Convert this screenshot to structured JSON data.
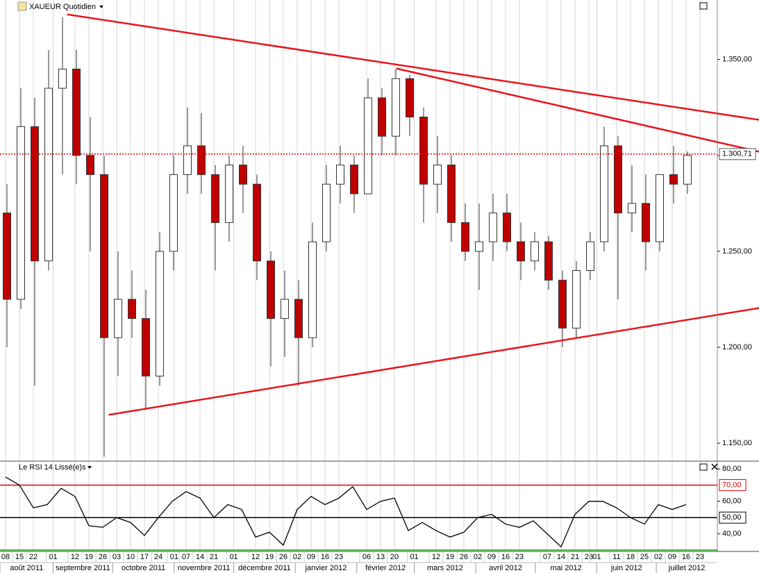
{
  "chart_data": [
    {
      "type": "candlestick",
      "title": "XAUEUR Quotidien",
      "x": [
        "2011-08-08",
        "2011-08-15",
        "2011-08-22",
        "2011-08-29",
        "2011-09-05",
        "2011-09-12",
        "2011-09-19",
        "2011-09-26",
        "2011-10-03",
        "2011-10-10",
        "2011-10-17",
        "2011-10-24",
        "2011-10-31",
        "2011-11-07",
        "2011-11-14",
        "2011-11-21",
        "2011-11-28",
        "2011-12-05",
        "2011-12-12",
        "2011-12-19",
        "2011-12-26",
        "2012-01-02",
        "2012-01-09",
        "2012-01-16",
        "2012-01-23",
        "2012-01-30",
        "2012-02-06",
        "2012-02-13",
        "2012-02-20",
        "2012-02-27",
        "2012-03-05",
        "2012-03-12",
        "2012-03-19",
        "2012-03-26",
        "2012-04-02",
        "2012-04-09",
        "2012-04-16",
        "2012-04-23",
        "2012-04-30",
        "2012-05-07",
        "2012-05-14",
        "2012-05-21",
        "2012-05-28",
        "2012-06-04",
        "2012-06-11",
        "2012-06-18",
        "2012-06-25",
        "2012-07-02",
        "2012-07-09",
        "2012-07-16"
      ],
      "open": [
        1.27,
        1.225,
        1.315,
        1.245,
        1.335,
        1.345,
        1.3,
        1.29,
        1.205,
        1.225,
        1.215,
        1.185,
        1.25,
        1.29,
        1.305,
        1.29,
        1.265,
        1.295,
        1.285,
        1.245,
        1.215,
        1.225,
        1.205,
        1.255,
        1.285,
        1.295,
        1.28,
        1.33,
        1.31,
        1.34,
        1.32,
        1.285,
        1.295,
        1.265,
        1.25,
        1.255,
        1.27,
        1.255,
        1.245,
        1.255,
        1.235,
        1.21,
        1.24,
        1.255,
        1.305,
        1.27,
        1.275,
        1.255,
        1.29,
        1.285
      ],
      "high": [
        1.285,
        1.335,
        1.33,
        1.355,
        1.372,
        1.355,
        1.32,
        1.3,
        1.25,
        1.24,
        1.23,
        1.26,
        1.3,
        1.325,
        1.322,
        1.295,
        1.3,
        1.305,
        1.29,
        1.25,
        1.24,
        1.235,
        1.265,
        1.295,
        1.305,
        1.3,
        1.34,
        1.335,
        1.345,
        1.342,
        1.325,
        1.31,
        1.3,
        1.275,
        1.275,
        1.28,
        1.28,
        1.265,
        1.26,
        1.258,
        1.24,
        1.245,
        1.26,
        1.315,
        1.31,
        1.295,
        1.29,
        1.29,
        1.305,
        1.302
      ],
      "low": [
        1.2,
        1.22,
        1.18,
        1.24,
        1.29,
        1.285,
        1.25,
        1.143,
        1.185,
        1.205,
        1.168,
        1.18,
        1.24,
        1.28,
        1.28,
        1.24,
        1.255,
        1.27,
        1.235,
        1.19,
        1.195,
        1.18,
        1.2,
        1.25,
        1.275,
        1.27,
        1.28,
        1.3,
        1.3,
        1.31,
        1.265,
        1.27,
        1.255,
        1.245,
        1.23,
        1.245,
        1.25,
        1.235,
        1.24,
        1.23,
        1.2,
        1.205,
        1.235,
        1.25,
        1.225,
        1.26,
        1.24,
        1.25,
        1.275,
        1.28
      ],
      "close": [
        1.225,
        1.315,
        1.245,
        1.335,
        1.345,
        1.3,
        1.29,
        1.205,
        1.225,
        1.215,
        1.185,
        1.25,
        1.29,
        1.305,
        1.29,
        1.265,
        1.295,
        1.285,
        1.245,
        1.215,
        1.225,
        1.205,
        1.255,
        1.285,
        1.295,
        1.28,
        1.33,
        1.31,
        1.34,
        1.32,
        1.285,
        1.295,
        1.265,
        1.25,
        1.255,
        1.27,
        1.255,
        1.245,
        1.255,
        1.235,
        1.21,
        1.24,
        1.255,
        1.305,
        1.27,
        1.275,
        1.255,
        1.29,
        1.285,
        1.3
      ],
      "up_color": "#ffffff",
      "down_color": "#c00000",
      "outline_color": "#333333",
      "ylim": [
        1.141,
        1.381
      ],
      "yticks": [
        {
          "value": 1.15,
          "label": "1.150,00"
        },
        {
          "value": 1.2,
          "label": "1.200,00"
        },
        {
          "value": 1.25,
          "label": "1.250,00"
        },
        {
          "value": 1.3,
          "label": "1.300,00"
        },
        {
          "value": 1.35,
          "label": "1.350,00"
        }
      ],
      "last_price": {
        "value": 1.30071,
        "label": "1.300,71",
        "color": "#e00000"
      },
      "trendlines": [
        {
          "x": [
            "2011-09-08",
            "2012-08-22"
          ],
          "y": [
            1.3735,
            1.3185
          ],
          "color": "#e8141b"
        },
        {
          "x": [
            "2012-02-21",
            "2012-08-22"
          ],
          "y": [
            1.3453,
            1.3019
          ],
          "color": "#e8141b"
        },
        {
          "x": [
            "2011-09-29",
            "2012-08-22"
          ],
          "y": [
            1.1648,
            1.2205
          ],
          "color": "#e8141b"
        }
      ],
      "xticks": [
        {
          "value": "2011-08-08",
          "label": "08"
        },
        {
          "value": "2011-08-15",
          "label": "15"
        },
        {
          "value": "2011-08-22",
          "label": "22"
        },
        {
          "value": "2011-09-01",
          "label": "01"
        },
        {
          "value": "2011-09-12",
          "label": "12"
        },
        {
          "value": "2011-09-19",
          "label": "19"
        },
        {
          "value": "2011-09-26",
          "label": "26"
        },
        {
          "value": "2011-10-03",
          "label": "03"
        },
        {
          "value": "2011-10-10",
          "label": "10"
        },
        {
          "value": "2011-10-17",
          "label": "17"
        },
        {
          "value": "2011-10-24",
          "label": "24"
        },
        {
          "value": "2011-11-01",
          "label": "01"
        },
        {
          "value": "2011-11-07",
          "label": "07"
        },
        {
          "value": "2011-11-14",
          "label": "14"
        },
        {
          "value": "2011-11-21",
          "label": "21"
        },
        {
          "value": "2011-12-01",
          "label": "01"
        },
        {
          "value": "2011-12-12",
          "label": "12"
        },
        {
          "value": "2011-12-19",
          "label": "19"
        },
        {
          "value": "2011-12-26",
          "label": "26"
        },
        {
          "value": "2012-01-02",
          "label": "02"
        },
        {
          "value": "2012-01-09",
          "label": "09"
        },
        {
          "value": "2012-01-16",
          "label": "16"
        },
        {
          "value": "2012-01-23",
          "label": "23"
        },
        {
          "value": "2012-02-06",
          "label": "06"
        },
        {
          "value": "2012-02-13",
          "label": "13"
        },
        {
          "value": "2012-02-20",
          "label": "20"
        },
        {
          "value": "2012-03-01",
          "label": "01"
        },
        {
          "value": "2012-03-12",
          "label": "12"
        },
        {
          "value": "2012-03-19",
          "label": "19"
        },
        {
          "value": "2012-03-26",
          "label": "26"
        },
        {
          "value": "2012-04-02",
          "label": "02"
        },
        {
          "value": "2012-04-09",
          "label": "09"
        },
        {
          "value": "2012-04-16",
          "label": "16"
        },
        {
          "value": "2012-04-23",
          "label": "23"
        },
        {
          "value": "2012-05-07",
          "label": "07"
        },
        {
          "value": "2012-05-14",
          "label": "14"
        },
        {
          "value": "2012-05-21",
          "label": "21"
        },
        {
          "value": "2012-05-28",
          "label": "28"
        },
        {
          "value": "2012-06-01",
          "label": "01"
        },
        {
          "value": "2012-06-11",
          "label": "11"
        },
        {
          "value": "2012-06-18",
          "label": "18"
        },
        {
          "value": "2012-06-25",
          "label": "25"
        },
        {
          "value": "2012-07-02",
          "label": "02"
        },
        {
          "value": "2012-07-09",
          "label": "09"
        },
        {
          "value": "2012-07-16",
          "label": "16"
        },
        {
          "value": "2012-07-23",
          "label": "23"
        }
      ],
      "month_ticks": [
        {
          "value": "2011-08-01",
          "label": "août 2011"
        },
        {
          "value": "2011-09-01",
          "label": "septembre 2011"
        },
        {
          "value": "2011-10-01",
          "label": "octobre 2011"
        },
        {
          "value": "2011-11-01",
          "label": "novembre 2011"
        },
        {
          "value": "2011-12-01",
          "label": "décembre 2011"
        },
        {
          "value": "2012-01-01",
          "label": "janvier 2012"
        },
        {
          "value": "2012-02-01",
          "label": "février 2012"
        },
        {
          "value": "2012-03-01",
          "label": "mars 2012"
        },
        {
          "value": "2012-04-01",
          "label": "avril 2012"
        },
        {
          "value": "2012-05-01",
          "label": "mai 2012"
        },
        {
          "value": "2012-06-01",
          "label": "juin 2012"
        },
        {
          "value": "2012-07-01",
          "label": "juillet 2012"
        }
      ],
      "grid": true
    },
    {
      "type": "line",
      "title": "Le RSI 14 Lissé(e)s",
      "x": [
        "2011-08-08",
        "2011-08-15",
        "2011-08-22",
        "2011-08-29",
        "2011-09-05",
        "2011-09-12",
        "2011-09-19",
        "2011-09-26",
        "2011-10-03",
        "2011-10-10",
        "2011-10-17",
        "2011-10-24",
        "2011-10-31",
        "2011-11-07",
        "2011-11-14",
        "2011-11-21",
        "2011-11-28",
        "2011-12-05",
        "2011-12-12",
        "2011-12-19",
        "2011-12-26",
        "2012-01-02",
        "2012-01-09",
        "2012-01-16",
        "2012-01-23",
        "2012-01-30",
        "2012-02-06",
        "2012-02-13",
        "2012-02-20",
        "2012-02-27",
        "2012-03-05",
        "2012-03-12",
        "2012-03-19",
        "2012-03-26",
        "2012-04-02",
        "2012-04-09",
        "2012-04-16",
        "2012-04-23",
        "2012-04-30",
        "2012-05-07",
        "2012-05-14",
        "2012-05-21",
        "2012-05-28",
        "2012-06-04",
        "2012-06-11",
        "2012-06-18",
        "2012-06-25",
        "2012-07-02",
        "2012-07-09",
        "2012-07-16"
      ],
      "values": [
        75,
        70,
        56,
        58,
        68,
        63,
        45,
        44,
        50,
        47,
        39,
        50,
        60,
        66,
        62,
        50,
        58,
        55,
        38,
        41,
        33,
        55,
        63,
        58,
        62,
        69,
        55,
        60,
        62,
        42,
        47,
        42,
        38,
        41,
        50,
        52,
        46,
        44,
        48,
        40,
        32,
        52,
        60,
        60,
        56,
        50,
        46,
        58,
        55,
        58
      ],
      "color": "#000000",
      "ylim": [
        30,
        84.3
      ],
      "yticks": [
        {
          "value": 40,
          "label": "40,00"
        },
        {
          "value": 60,
          "label": "60,00"
        },
        {
          "value": 80,
          "label": "80,00"
        }
      ],
      "levels": [
        {
          "value": 70,
          "label": "70,00",
          "color": "#e00000"
        },
        {
          "value": 50,
          "label": "50,00",
          "color": "#000000"
        },
        {
          "value": 30,
          "color": "#00a000"
        }
      ]
    }
  ]
}
